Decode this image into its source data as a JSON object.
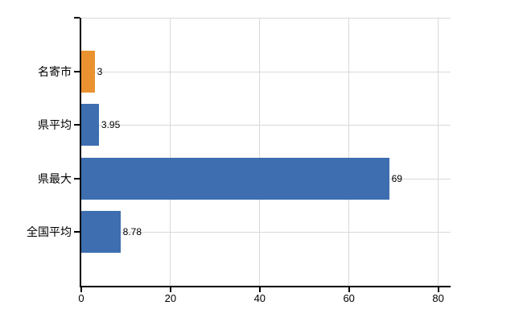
{
  "chart_data": {
    "type": "bar",
    "orientation": "horizontal",
    "title": "",
    "categories": [
      "名寄市",
      "県平均",
      "県最大",
      "全国平均"
    ],
    "values": [
      3,
      3.95,
      69,
      8.78
    ],
    "value_labels": [
      "3",
      "3.95",
      "69",
      "8.78"
    ],
    "bar_colors": [
      "#ea9230",
      "#3e6eb0",
      "#3e6eb0",
      "#3e6eb0"
    ],
    "x_ticks": [
      0,
      20,
      40,
      60,
      80
    ],
    "x_tick_labels": [
      "0",
      "20",
      "40",
      "60",
      "80"
    ],
    "xlim": [
      0,
      82.8
    ],
    "grid": "on",
    "legend": "none",
    "colors": {
      "bar_orange": "#ea9230",
      "bar_blue": "#3e6eb0",
      "gridline": "#d9d9d9",
      "axis": "#000000",
      "background": "#ffffff",
      "text": "#000000"
    }
  }
}
